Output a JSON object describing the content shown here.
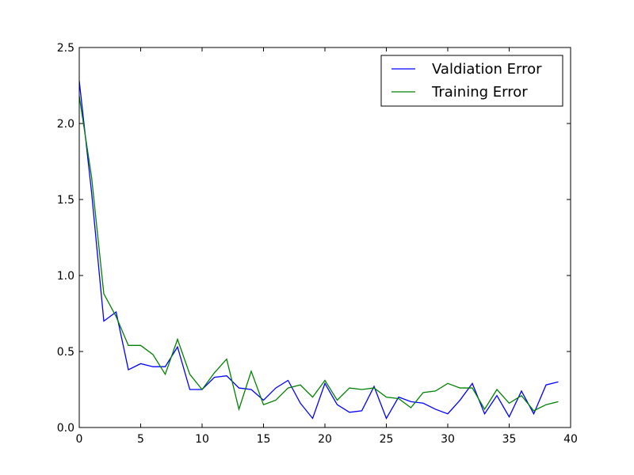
{
  "chart_data": {
    "type": "line",
    "title": "",
    "xlabel": "",
    "ylabel": "",
    "xlim": [
      0,
      40
    ],
    "ylim": [
      0.0,
      2.5
    ],
    "grid": false,
    "legend_position": "top-right",
    "xticks": [
      "0",
      "5",
      "10",
      "15",
      "20",
      "25",
      "30",
      "35",
      "40"
    ],
    "yticks": [
      "0.0",
      "0.5",
      "1.0",
      "1.5",
      "2.0",
      "2.5"
    ],
    "x": [
      0,
      1,
      2,
      3,
      4,
      5,
      6,
      7,
      8,
      9,
      10,
      11,
      12,
      13,
      14,
      15,
      16,
      17,
      18,
      19,
      20,
      21,
      22,
      23,
      24,
      25,
      26,
      27,
      28,
      29,
      30,
      31,
      32,
      33,
      34,
      35,
      36,
      37,
      38,
      39
    ],
    "series": [
      {
        "name": "Valdiation Error",
        "color": "#0000ff",
        "values": [
          2.28,
          1.55,
          0.7,
          0.76,
          0.38,
          0.42,
          0.4,
          0.4,
          0.53,
          0.25,
          0.25,
          0.33,
          0.34,
          0.26,
          0.25,
          0.18,
          0.26,
          0.31,
          0.16,
          0.06,
          0.29,
          0.15,
          0.1,
          0.11,
          0.27,
          0.06,
          0.2,
          0.17,
          0.16,
          0.12,
          0.09,
          0.18,
          0.29,
          0.09,
          0.21,
          0.07,
          0.24,
          0.09,
          0.28,
          0.3
        ]
      },
      {
        "name": "Training Error",
        "color": "#008000",
        "values": [
          2.18,
          1.65,
          0.88,
          0.73,
          0.54,
          0.54,
          0.48,
          0.35,
          0.58,
          0.35,
          0.25,
          0.36,
          0.45,
          0.12,
          0.37,
          0.15,
          0.18,
          0.26,
          0.28,
          0.2,
          0.31,
          0.18,
          0.26,
          0.25,
          0.26,
          0.2,
          0.19,
          0.13,
          0.23,
          0.24,
          0.29,
          0.26,
          0.26,
          0.12,
          0.25,
          0.16,
          0.21,
          0.11,
          0.15,
          0.17
        ]
      }
    ]
  }
}
